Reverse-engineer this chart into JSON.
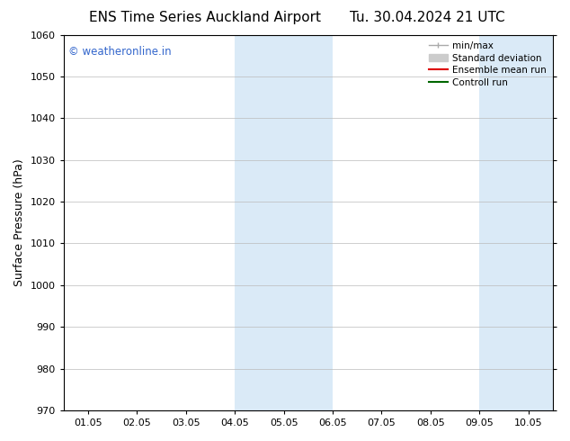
{
  "title_left": "ENS Time Series Auckland Airport",
  "title_right": "Tu. 30.04.2024 21 UTC",
  "ylabel": "Surface Pressure (hPa)",
  "ylim": [
    970,
    1060
  ],
  "yticks": [
    970,
    980,
    990,
    1000,
    1010,
    1020,
    1030,
    1040,
    1050,
    1060
  ],
  "xtick_labels": [
    "01.05",
    "02.05",
    "03.05",
    "04.05",
    "05.05",
    "06.05",
    "07.05",
    "08.05",
    "09.05",
    "10.05"
  ],
  "xtick_positions": [
    0,
    1,
    2,
    3,
    4,
    5,
    6,
    7,
    8,
    9
  ],
  "xlim": [
    -0.5,
    9.5
  ],
  "shaded_regions": [
    {
      "x_start": 3.0,
      "x_end": 5.0,
      "color": "#daeaf7"
    },
    {
      "x_start": 8.0,
      "x_end": 9.5,
      "color": "#daeaf7"
    }
  ],
  "watermark_text": "© weatheronline.in",
  "watermark_color": "#3366cc",
  "background_color": "#ffffff",
  "plot_bg_color": "#ffffff",
  "legend_entries": [
    {
      "label": "min/max",
      "color": "#aaaaaa",
      "type": "minmax"
    },
    {
      "label": "Standard deviation",
      "color": "#cccccc",
      "type": "std"
    },
    {
      "label": "Ensemble mean run",
      "color": "#dd0000",
      "type": "line"
    },
    {
      "label": "Controll run",
      "color": "#006600",
      "type": "line"
    }
  ],
  "title_fontsize": 11,
  "tick_fontsize": 8,
  "ylabel_fontsize": 9,
  "grid_color": "#bbbbbb",
  "spine_color": "#000000"
}
